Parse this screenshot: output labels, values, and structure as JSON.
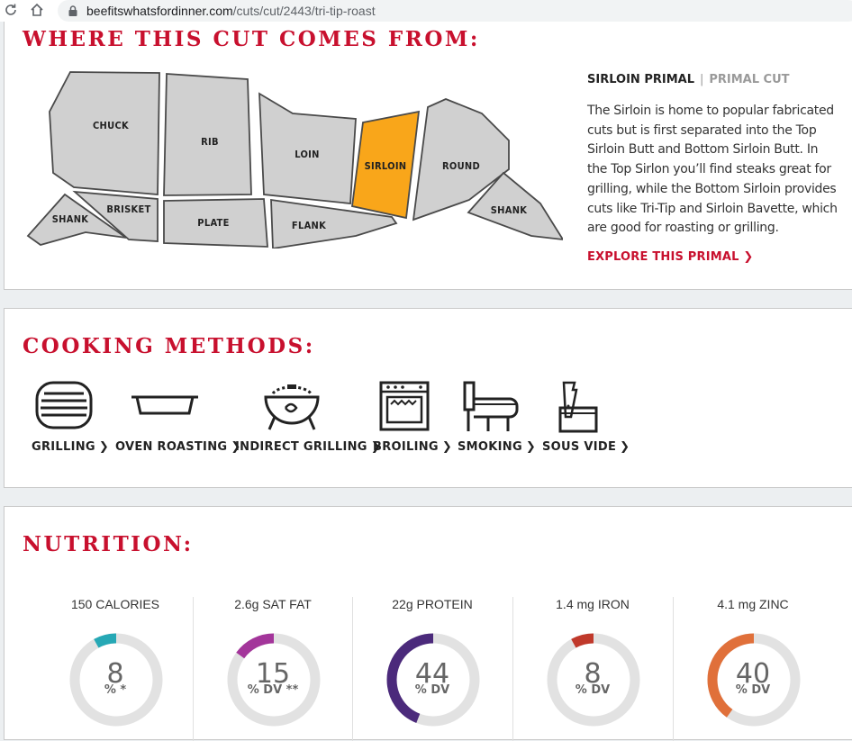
{
  "browser": {
    "url_domain": "beefitswhatsfordinner.com",
    "url_path": "/cuts/cut/2443/tri-tip-roast"
  },
  "where_section": {
    "title": "WHERE THIS CUT COMES FROM:",
    "cuts": [
      "CHUCK",
      "RIB",
      "LOIN",
      "SIRLOIN",
      "ROUND",
      "SHANK",
      "BRISKET",
      "PLATE",
      "FLANK",
      "SHANK"
    ],
    "active_cut": "SIRLOIN",
    "active_color": "#f9a61a",
    "primal_name": "SIRLOIN PRIMAL",
    "separator": "|",
    "primal_type": "PRIMAL CUT",
    "description": "The Sirloin is home to popular fabricated cuts but is first separated into the Top Sirloin Butt and Bottom Sirloin Butt. In the Top Sirlon you’ll find steaks great for grilling, while the Bottom Sirloin provides cuts like Tri-Tip and Sirloin Bavette, which are good for roasting or grilling.",
    "explore_label": "EXPLORE THIS PRIMAL"
  },
  "cooking_section": {
    "title": "COOKING METHODS:",
    "methods": [
      {
        "label": "GRILLING",
        "icon": "grill-icon"
      },
      {
        "label": "OVEN ROASTING",
        "icon": "roasting-pan-icon"
      },
      {
        "label": "INDIRECT GRILLING",
        "icon": "kettle-grill-icon"
      },
      {
        "label": "BROILING",
        "icon": "oven-icon"
      },
      {
        "label": "SMOKING",
        "icon": "smoker-icon"
      },
      {
        "label": "SOUS VIDE",
        "icon": "sous-vide-icon"
      }
    ]
  },
  "nutrition_section": {
    "title": "NUTRITION:",
    "nutrients": [
      {
        "label": "150 CALORIES",
        "value": "8",
        "unit": "% *",
        "percent": 8,
        "color": "#26a8b5"
      },
      {
        "label": "2.6g SAT FAT",
        "value": "15",
        "unit": "% DV **",
        "percent": 15,
        "color": "#a3359a"
      },
      {
        "label": "22g PROTEIN",
        "value": "44",
        "unit": "% DV",
        "percent": 44,
        "color": "#4b2a7b"
      },
      {
        "label": "1.4 mg IRON",
        "value": "8",
        "unit": "% DV",
        "percent": 8,
        "color": "#c0392b"
      },
      {
        "label": "4.1 mg ZINC",
        "value": "40",
        "unit": "% DV",
        "percent": 40,
        "color": "#e0703a"
      }
    ],
    "track_color": "#e2e2e2"
  }
}
